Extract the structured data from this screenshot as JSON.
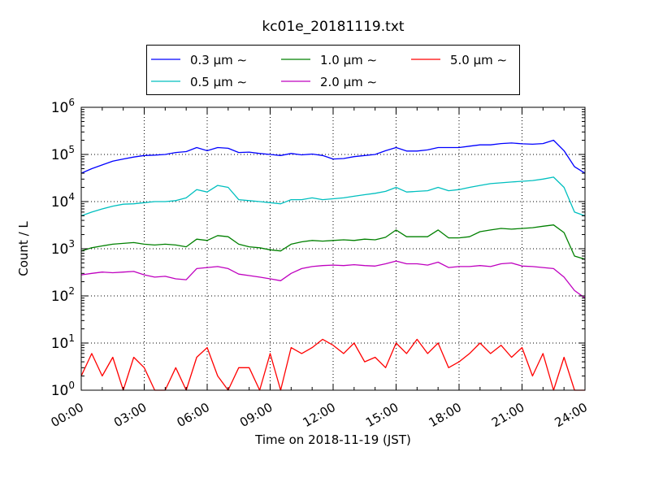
{
  "chart_data": {
    "type": "line",
    "title": "kc01e_20181119.txt",
    "xlabel": "Time on 2018-11-19 (JST)",
    "ylabel": "Count / L",
    "yscale": "log",
    "ylim": [
      1,
      1000000
    ],
    "xlim_hours": [
      0,
      24
    ],
    "grid": true,
    "legend_position": "top-center (above plot)",
    "x_tick_labels": [
      "00:00",
      "03:00",
      "06:00",
      "09:00",
      "12:00",
      "15:00",
      "18:00",
      "21:00",
      "24:00"
    ],
    "y_tick_labels": [
      {
        "base": "10",
        "exp": "0"
      },
      {
        "base": "10",
        "exp": "1"
      },
      {
        "base": "10",
        "exp": "2"
      },
      {
        "base": "10",
        "exp": "3"
      },
      {
        "base": "10",
        "exp": "4"
      },
      {
        "base": "10",
        "exp": "5"
      },
      {
        "base": "10",
        "exp": "6"
      }
    ],
    "x_hours": [
      0,
      0.5,
      1,
      1.5,
      2,
      2.5,
      3,
      3.5,
      4,
      4.5,
      5,
      5.5,
      6,
      6.5,
      7,
      7.5,
      8,
      8.5,
      9,
      9.5,
      10,
      10.5,
      11,
      11.5,
      12,
      12.5,
      13,
      13.5,
      14,
      14.5,
      15,
      15.5,
      16,
      16.5,
      17,
      17.5,
      18,
      18.5,
      19,
      19.5,
      20,
      20.5,
      21,
      21.5,
      22,
      22.5,
      23,
      23.5,
      24
    ],
    "series": [
      {
        "name": "0.3 μm ∼",
        "color": "#0000ff",
        "values": [
          40000,
          50000,
          60000,
          72000,
          80000,
          88000,
          95000,
          97000,
          100000,
          110000,
          115000,
          140000,
          120000,
          140000,
          135000,
          110000,
          112000,
          105000,
          100000,
          95000,
          105000,
          98000,
          102000,
          95000,
          80000,
          82000,
          90000,
          95000,
          100000,
          120000,
          140000,
          118000,
          118000,
          125000,
          140000,
          140000,
          140000,
          150000,
          160000,
          160000,
          170000,
          175000,
          168000,
          165000,
          170000,
          200000,
          120000,
          55000,
          40000
        ]
      },
      {
        "name": "0.5 μm ∼",
        "color": "#00bfbf",
        "values": [
          5000,
          6000,
          7000,
          8000,
          8800,
          9000,
          9500,
          10000,
          10000,
          10500,
          12000,
          18000,
          16000,
          22000,
          20000,
          11000,
          10500,
          10000,
          9500,
          9000,
          11000,
          11000,
          12000,
          11000,
          11500,
          12000,
          13000,
          14000,
          15000,
          16500,
          20000,
          16000,
          16500,
          17000,
          20000,
          17000,
          18000,
          20000,
          22000,
          24000,
          25000,
          26000,
          27000,
          28000,
          30000,
          33000,
          20000,
          6000,
          5000
        ]
      },
      {
        "name": "1.0 μm ∼",
        "color": "#008000",
        "values": [
          900,
          1050,
          1150,
          1250,
          1300,
          1350,
          1250,
          1200,
          1250,
          1200,
          1100,
          1600,
          1500,
          1900,
          1800,
          1250,
          1100,
          1050,
          950,
          900,
          1250,
          1400,
          1500,
          1450,
          1500,
          1550,
          1500,
          1600,
          1550,
          1750,
          2500,
          1800,
          1800,
          1800,
          2500,
          1700,
          1700,
          1800,
          2300,
          2500,
          2700,
          2600,
          2700,
          2800,
          3000,
          3200,
          2200,
          700,
          600
        ]
      },
      {
        "name": "2.0 μm ∼",
        "color": "#bf00bf",
        "values": [
          280,
          300,
          320,
          310,
          320,
          330,
          280,
          250,
          260,
          230,
          220,
          380,
          400,
          420,
          380,
          290,
          270,
          250,
          230,
          210,
          300,
          380,
          420,
          440,
          450,
          440,
          460,
          440,
          430,
          480,
          550,
          480,
          480,
          450,
          520,
          400,
          420,
          420,
          440,
          420,
          480,
          500,
          430,
          420,
          400,
          380,
          250,
          130,
          90
        ]
      },
      {
        "name": "5.0 μm ∼",
        "color": "#ff0000",
        "values": [
          2,
          6,
          2,
          5,
          1,
          5,
          3,
          1,
          1,
          3,
          1,
          5,
          8,
          2,
          1,
          3,
          3,
          1,
          6,
          1,
          8,
          6,
          8,
          12,
          9,
          6,
          10,
          4,
          5,
          3,
          10,
          6,
          12,
          6,
          10,
          3,
          4,
          6,
          10,
          6,
          9,
          5,
          8,
          2,
          6,
          1,
          5,
          1,
          1
        ]
      }
    ]
  }
}
